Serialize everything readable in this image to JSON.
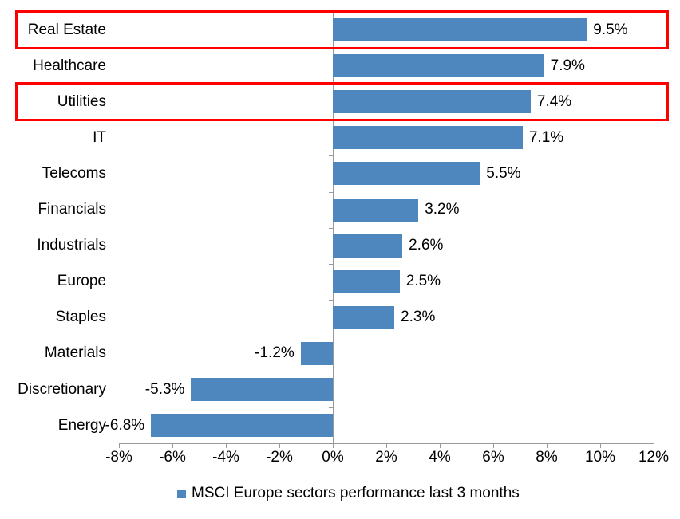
{
  "chart_data": {
    "type": "bar",
    "orientation": "horizontal",
    "title": "",
    "categories": [
      "Real Estate",
      "Healthcare",
      "Utilities",
      "IT",
      "Telecoms",
      "Financials",
      "Industrials",
      "Europe",
      "Staples",
      "Materials",
      "Discretionary",
      "Energy"
    ],
    "values": [
      9.5,
      7.9,
      7.4,
      7.1,
      5.5,
      3.2,
      2.6,
      2.5,
      2.3,
      -1.2,
      -5.3,
      -6.8
    ],
    "value_labels": [
      "9.5%",
      "7.9%",
      "7.4%",
      "7.1%",
      "5.5%",
      "3.2%",
      "2.6%",
      "2.5%",
      "2.3%",
      "-1.2%",
      "-5.3%",
      "-6.8%"
    ],
    "x_axis": {
      "min": -8,
      "max": 12,
      "tick_step": 2,
      "tick_values": [
        -8,
        -6,
        -4,
        -2,
        0,
        2,
        4,
        6,
        8,
        10,
        12
      ],
      "tick_labels": [
        "-8%",
        "-6%",
        "-4%",
        "-2%",
        "0%",
        "2%",
        "4%",
        "6%",
        "8%",
        "10%",
        "12%"
      ]
    },
    "legend": {
      "label": "MSCI Europe sectors performance last 3 months",
      "position": "bottom"
    },
    "highlighted_rows": [
      0,
      2
    ],
    "colors": {
      "bar": "#4E86BE",
      "highlight_box": "#FF0000",
      "axis": "#9A9A9A",
      "text": "#000000",
      "background": "#FFFFFF"
    },
    "grid": false
  }
}
